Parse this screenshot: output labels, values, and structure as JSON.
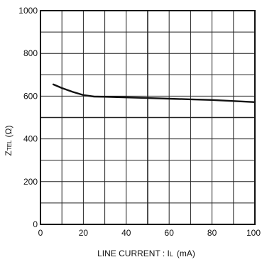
{
  "chart_data": {
    "type": "line",
    "title": "",
    "xlabel": "LINE CURRENT : IL (mA)",
    "xlabel_parts": {
      "main": "LINE CURRENT : I",
      "subscript": "L",
      "unit": "(mA)"
    },
    "ylabel": "ZTEL (Ω)",
    "ylabel_parts": {
      "main": "Z",
      "subscript": "TEL",
      "unit": "(Ω)"
    },
    "xlim": [
      0,
      100
    ],
    "ylim": [
      0,
      1000
    ],
    "x_ticks": [
      0,
      20,
      40,
      60,
      80,
      100
    ],
    "y_ticks": [
      0,
      200,
      400,
      600,
      800,
      1000
    ],
    "x_minor_step": 10,
    "y_minor_step": 100,
    "grid": true,
    "line_color": "#111111",
    "grid_color": "#222222",
    "series": [
      {
        "x": [
          6,
          10,
          15,
          20,
          25,
          30,
          40,
          50,
          60,
          70,
          80,
          90,
          100
        ],
        "y": [
          655,
          638,
          620,
          605,
          598,
          597,
          594,
          591,
          588,
          585,
          582,
          577,
          572
        ]
      }
    ]
  }
}
